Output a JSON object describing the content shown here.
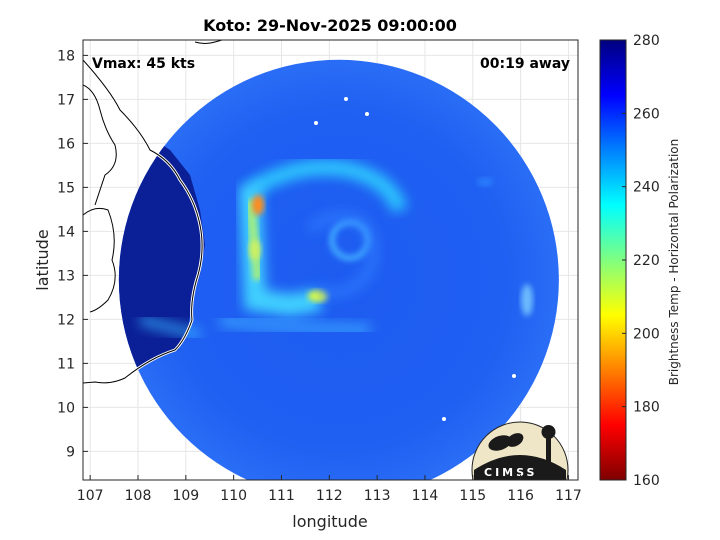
{
  "chart_data": {
    "type": "heatmap",
    "title": "Koto: 29-Nov-2025 09:00:00",
    "xlabel": "longitude",
    "ylabel": "latitude",
    "xlim": [
      106.85,
      117.2
    ],
    "ylim": [
      8.35,
      18.35
    ],
    "x_ticks": [
      107,
      108,
      109,
      110,
      111,
      112,
      113,
      114,
      115,
      116,
      117
    ],
    "y_ticks": [
      9,
      10,
      11,
      12,
      13,
      14,
      15,
      16,
      17,
      18
    ],
    "grid": true,
    "annotations": {
      "vmax": "Vmax: 45 kts",
      "away": "00:19 away"
    },
    "colorbar": {
      "label": "Brightness Temp - Horizontal Polarization",
      "range": [
        160,
        280
      ],
      "ticks": [
        160,
        180,
        200,
        220,
        240,
        260,
        280
      ],
      "colormap": "jet",
      "colors": [
        "#7f0000",
        "#ff0000",
        "#ff8000",
        "#ffff00",
        "#80ff80",
        "#00ffff",
        "#0080ff",
        "#0000ff",
        "#00007f"
      ]
    },
    "swath": {
      "center_lon": 112.2,
      "center_lat": 12.9,
      "radius_deg": 4.6
    },
    "storm_center": {
      "lon": 112.3,
      "lat": 13.7
    }
  },
  "logo": {
    "text": "CIMSS"
  }
}
